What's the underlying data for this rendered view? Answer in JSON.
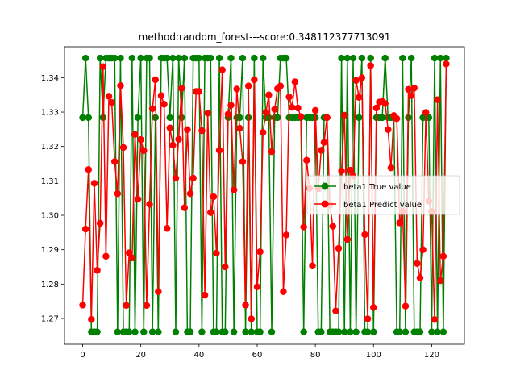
{
  "chart_data": {
    "type": "line",
    "title": "method:random_forest---score:0.348112377713091",
    "xlabel": "",
    "ylabel": "",
    "xlim": [
      -6.25,
      131.25
    ],
    "ylim": [
      1.2625,
      1.349
    ],
    "grid": false,
    "legend_position": "center-right",
    "x_ticks": [
      0,
      20,
      40,
      60,
      80,
      100,
      120
    ],
    "y_ticks": [
      1.27,
      1.28,
      1.29,
      1.3,
      1.31,
      1.32,
      1.33,
      1.34
    ],
    "x_tick_labels": [
      "0",
      "20",
      "40",
      "60",
      "80",
      "100",
      "120"
    ],
    "y_tick_labels": [
      "1.27",
      "1.28",
      "1.29",
      "1.30",
      "1.31",
      "1.32",
      "1.33",
      "1.34"
    ],
    "series": [
      {
        "name": "beta1 True value",
        "color": "#008000",
        "marker": "circle",
        "values": [
          1.3284,
          1.3457,
          1.3284,
          1.2661,
          1.2661,
          1.2661,
          1.3457,
          1.3284,
          1.3457,
          1.3457,
          1.3457,
          1.3457,
          1.2661,
          1.3457,
          1.2661,
          1.2661,
          1.2661,
          1.3457,
          1.2661,
          1.3284,
          1.3457,
          1.2661,
          1.3457,
          1.3457,
          1.2661,
          1.3284,
          1.2661,
          1.3457,
          1.3457,
          1.3457,
          1.3284,
          1.3457,
          1.2661,
          1.3457,
          1.3284,
          1.3457,
          1.2661,
          1.2661,
          1.3457,
          1.3457,
          1.3457,
          1.2661,
          1.3457,
          1.3457,
          1.3457,
          1.2661,
          1.2661,
          1.3457,
          1.2661,
          1.2661,
          1.3284,
          1.3457,
          1.2661,
          1.3284,
          1.3284,
          1.3457,
          1.2661,
          1.3284,
          1.2661,
          1.3457,
          1.2661,
          1.2661,
          1.3457,
          1.3284,
          1.3284,
          1.2661,
          1.3284,
          1.3284,
          1.3457,
          1.3457,
          1.3457,
          1.3284,
          1.3284,
          1.3284,
          1.3284,
          1.3284,
          1.2661,
          1.3284,
          1.3284,
          1.3284,
          1.3284,
          1.2661,
          1.2661,
          1.3284,
          1.3284,
          1.2661,
          1.2661,
          1.2661,
          1.2661,
          1.3457,
          1.2661,
          1.3457,
          1.2661,
          1.3457,
          1.2661,
          1.3284,
          1.3457,
          1.2661,
          1.2661,
          1.3457,
          1.2661,
          1.3284,
          1.3284,
          1.3284,
          1.3457,
          1.3284,
          1.3284,
          1.3284,
          1.2661,
          1.2661,
          1.3457,
          1.2661,
          1.3284,
          1.3457,
          1.2661,
          1.2661,
          1.2661,
          1.3284,
          1.3284,
          1.3284,
          1.2661,
          1.3457,
          1.2661,
          1.3457,
          1.2661,
          1.3457
        ]
      },
      {
        "name": "beta1 Predict value",
        "color": "#ff0000",
        "marker": "circle",
        "values": [
          1.2739,
          1.296,
          1.3133,
          1.2697,
          1.3093,
          1.284,
          1.2977,
          1.3432,
          1.2881,
          1.3346,
          1.3328,
          1.3156,
          1.3063,
          1.3377,
          1.3197,
          1.2738,
          1.2891,
          1.2876,
          1.3235,
          1.3047,
          1.322,
          1.3188,
          1.2738,
          1.3032,
          1.331,
          1.3394,
          1.2778,
          1.3348,
          1.3323,
          1.2962,
          1.3254,
          1.3204,
          1.3108,
          1.3221,
          1.3369,
          1.3022,
          1.3249,
          1.3063,
          1.3108,
          1.336,
          1.336,
          1.3246,
          1.2768,
          1.3297,
          1.3008,
          1.3054,
          1.289,
          1.3189,
          1.3423,
          1.285,
          1.3294,
          1.332,
          1.3074,
          1.3367,
          1.3253,
          1.3156,
          1.2739,
          1.3376,
          1.2699,
          1.3394,
          1.2792,
          1.2894,
          1.3241,
          1.3299,
          1.335,
          1.3185,
          1.3308,
          1.3368,
          1.3376,
          1.2778,
          1.2943,
          1.3344,
          1.3314,
          1.3388,
          1.3312,
          1.3287,
          1.2966,
          1.316,
          1.3078,
          1.2853,
          1.3305,
          1.3077,
          1.3189,
          1.3212,
          1.3284,
          1.303,
          1.2968,
          1.2722,
          1.2904,
          1.3129,
          1.3291,
          1.293,
          1.3131,
          1.3114,
          1.3392,
          1.3343,
          1.34,
          1.2944,
          1.2699,
          1.3435,
          1.2732,
          1.3312,
          1.3329,
          1.3331,
          1.3325,
          1.3249,
          1.3138,
          1.329,
          1.3281,
          1.2978,
          1.3012,
          1.2736,
          1.3366,
          1.3348,
          1.337,
          1.286,
          1.2818,
          1.29,
          1.3299,
          1.3041,
          1.3011,
          1.2697,
          1.3336,
          1.281,
          1.2881,
          1.344
        ]
      }
    ]
  }
}
